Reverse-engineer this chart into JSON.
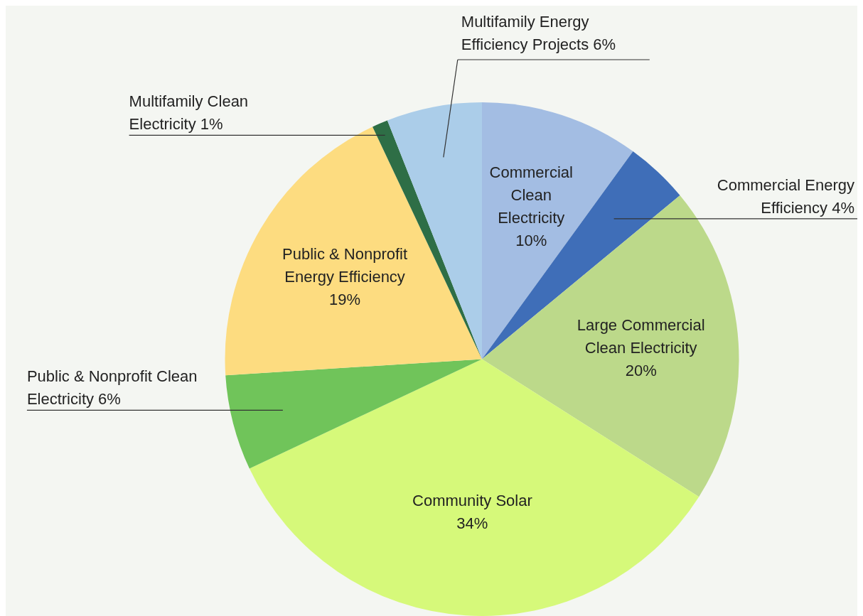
{
  "chart_data": {
    "type": "pie",
    "categories": [
      "Commercial Clean Electricity",
      "Commercial Energy Efficiency",
      "Large Commercial Clean Electricity",
      "Community Solar",
      "Public & Nonprofit Clean Electricity",
      "Public & Nonprofit Energy Efficiency",
      "Multifamily Clean Electricity",
      "Multifamily Energy Efficiency Projects"
    ],
    "values": [
      10,
      4,
      20,
      34,
      6,
      19,
      1,
      6
    ],
    "value_labels": [
      "10%",
      "4%",
      "20%",
      "34%",
      "6%",
      "19%",
      "1%",
      "6%"
    ],
    "colors": [
      "#a3bde3",
      "#3f6eb8",
      "#bcd98a",
      "#d6f97a",
      "#70c45a",
      "#fddc80",
      "#2e6e46",
      "#abcde9"
    ],
    "legend": false
  }
}
